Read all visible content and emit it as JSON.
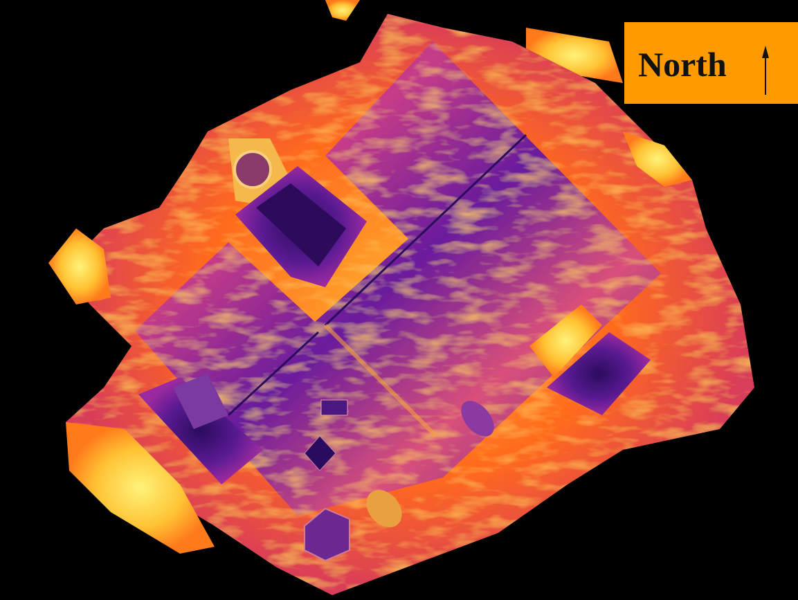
{
  "map": {
    "north_label": "North"
  }
}
